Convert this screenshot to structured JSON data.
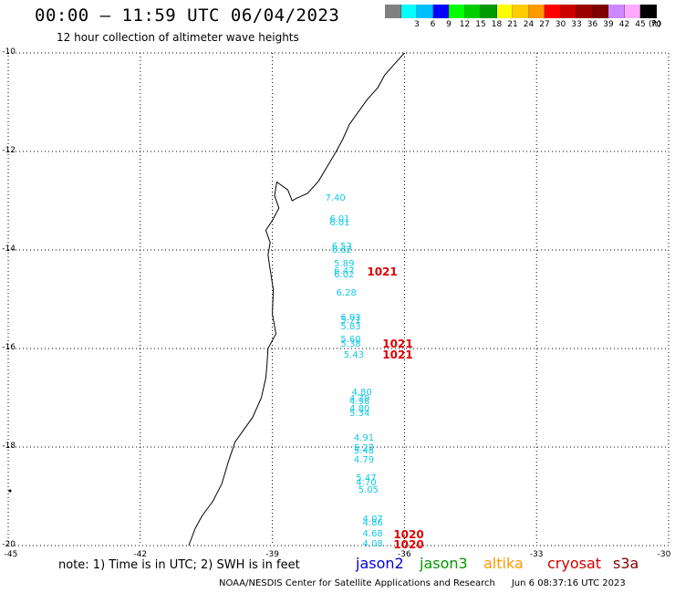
{
  "header": {
    "title": "00:00 – 11:59 UTC 06/04/2023",
    "subtitle": "12 hour collection of altimeter wave heights"
  },
  "legend": {
    "unit": "(ft)",
    "bins": [
      {
        "label": "",
        "color": "#808080"
      },
      {
        "label": "3",
        "color": "#00ffff"
      },
      {
        "label": "6",
        "color": "#00bfff"
      },
      {
        "label": "9",
        "color": "#0000ff"
      },
      {
        "label": "12",
        "color": "#00ff00"
      },
      {
        "label": "15",
        "color": "#00cc00"
      },
      {
        "label": "18",
        "color": "#009900"
      },
      {
        "label": "21",
        "color": "#ffff00"
      },
      {
        "label": "24",
        "color": "#ffcc00"
      },
      {
        "label": "27",
        "color": "#ff9900"
      },
      {
        "label": "30",
        "color": "#ff0000"
      },
      {
        "label": "33",
        "color": "#cc0000"
      },
      {
        "label": "36",
        "color": "#990000"
      },
      {
        "label": "39",
        "color": "#800000"
      },
      {
        "label": "42",
        "color": "#cc88ff"
      },
      {
        "label": "45",
        "color": "#ffaaff"
      },
      {
        "label": "70",
        "color": "#000000"
      }
    ]
  },
  "map": {
    "lat_ticks": [
      "-10",
      "-12",
      "-14",
      "-16",
      "-18",
      "-20"
    ],
    "lon_ticks": [
      "-45",
      "-42",
      "-39",
      "-36",
      "-33",
      "-30"
    ],
    "coast": [
      [
        -36.0,
        -10.0
      ],
      [
        -36.2,
        -10.2
      ],
      [
        -36.45,
        -10.45
      ],
      [
        -36.6,
        -10.7
      ],
      [
        -36.85,
        -10.95
      ],
      [
        -37.05,
        -11.2
      ],
      [
        -37.25,
        -11.45
      ],
      [
        -37.4,
        -11.75
      ],
      [
        -37.55,
        -12.0
      ],
      [
        -37.75,
        -12.3
      ],
      [
        -37.95,
        -12.6
      ],
      [
        -38.2,
        -12.85
      ],
      [
        -38.45,
        -12.95
      ],
      [
        -38.55,
        -13.0
      ],
      [
        -38.65,
        -12.78
      ],
      [
        -38.9,
        -12.62
      ],
      [
        -38.95,
        -12.9
      ],
      [
        -38.85,
        -13.15
      ],
      [
        -39.0,
        -13.4
      ],
      [
        -39.15,
        -13.6
      ],
      [
        -39.05,
        -13.85
      ],
      [
        -39.1,
        -14.1
      ],
      [
        -39.05,
        -14.4
      ],
      [
        -38.98,
        -14.8
      ],
      [
        -39.0,
        -15.3
      ],
      [
        -38.92,
        -15.7
      ],
      [
        -39.1,
        -16.0
      ],
      [
        -39.12,
        -16.3
      ],
      [
        -39.15,
        -16.6
      ],
      [
        -39.25,
        -17.0
      ],
      [
        -39.45,
        -17.4
      ],
      [
        -39.65,
        -17.65
      ],
      [
        -39.85,
        -17.9
      ],
      [
        -40.0,
        -18.3
      ],
      [
        -40.15,
        -18.75
      ],
      [
        -40.35,
        -19.1
      ],
      [
        -40.6,
        -19.4
      ],
      [
        -40.75,
        -19.65
      ],
      [
        -40.9,
        -20.0
      ]
    ],
    "waves": [
      {
        "text": "7.40",
        "lon": -37.8,
        "lat": -12.98
      },
      {
        "text": "6.01",
        "lon": -37.7,
        "lat": -13.4
      },
      {
        "text": "6.01",
        "lon": -37.7,
        "lat": -13.48
      },
      {
        "text": "6.53",
        "lon": -37.65,
        "lat": -13.96
      },
      {
        "text": "6.62",
        "lon": -37.65,
        "lat": -14.03
      },
      {
        "text": "5.89",
        "lon": -37.6,
        "lat": -14.32
      },
      {
        "text": "6.47",
        "lon": -37.6,
        "lat": -14.47
      },
      {
        "text": "6.02",
        "lon": -37.6,
        "lat": -14.54
      },
      {
        "text": "6.28",
        "lon": -37.55,
        "lat": -14.9
      },
      {
        "text": "6.03",
        "lon": -37.45,
        "lat": -15.4
      },
      {
        "text": "5.71",
        "lon": -37.45,
        "lat": -15.47
      },
      {
        "text": "5.83",
        "lon": -37.45,
        "lat": -15.6
      },
      {
        "text": "5.60",
        "lon": -37.45,
        "lat": -15.86
      },
      {
        "text": "5.38",
        "lon": -37.45,
        "lat": -15.94
      },
      {
        "text": "5.43",
        "lon": -37.38,
        "lat": -16.16
      },
      {
        "text": "4.80",
        "lon": -37.2,
        "lat": -16.92
      },
      {
        "text": "4.79",
        "lon": -37.25,
        "lat": -17.05
      },
      {
        "text": "4.98",
        "lon": -37.25,
        "lat": -17.12
      },
      {
        "text": "4.80",
        "lon": -37.25,
        "lat": -17.25
      },
      {
        "text": "5.34",
        "lon": -37.25,
        "lat": -17.35
      },
      {
        "text": "4.91",
        "lon": -37.15,
        "lat": -17.85
      },
      {
        "text": "5.27",
        "lon": -37.15,
        "lat": -18.05
      },
      {
        "text": "5.48",
        "lon": -37.15,
        "lat": -18.12
      },
      {
        "text": "4.79",
        "lon": -37.15,
        "lat": -18.3
      },
      {
        "text": "5.47",
        "lon": -37.1,
        "lat": -18.67
      },
      {
        "text": "4.70",
        "lon": -37.1,
        "lat": -18.76
      },
      {
        "text": "5.05",
        "lon": -37.05,
        "lat": -18.9
      },
      {
        "text": "4.07",
        "lon": -36.95,
        "lat": -19.5
      },
      {
        "text": "4.86",
        "lon": -36.95,
        "lat": -19.58
      },
      {
        "text": "4.68",
        "lon": -36.95,
        "lat": -19.8
      },
      {
        "text": "4.08",
        "lon": -36.95,
        "lat": -20.0
      }
    ],
    "pressure": [
      {
        "text": "1021",
        "lon": -36.85,
        "lat": -14.47
      },
      {
        "text": "1021",
        "lon": -36.5,
        "lat": -15.93
      },
      {
        "text": "1021",
        "lon": -36.5,
        "lat": -16.14
      },
      {
        "text": "1020",
        "lon": -36.25,
        "lat": -19.8
      },
      {
        "text": "1020",
        "lon": -36.25,
        "lat": -20.0
      }
    ]
  },
  "footer": {
    "note": "note: 1) Time is in UTC; 2) SWH is in feet",
    "satellites": [
      {
        "name": "jason2",
        "color": "#0000dd"
      },
      {
        "name": "jason3",
        "color": "#009900"
      },
      {
        "name": "altika",
        "color": "#ff9900"
      },
      {
        "name": "cryosat",
        "color": "#cc0000"
      },
      {
        "name": "s3a",
        "color": "#800000"
      }
    ],
    "credit": "NOAA/NESDIS Center for Satellite Applications and Research",
    "timestamp": "Jun  6 08:37:16 UTC 2023"
  }
}
